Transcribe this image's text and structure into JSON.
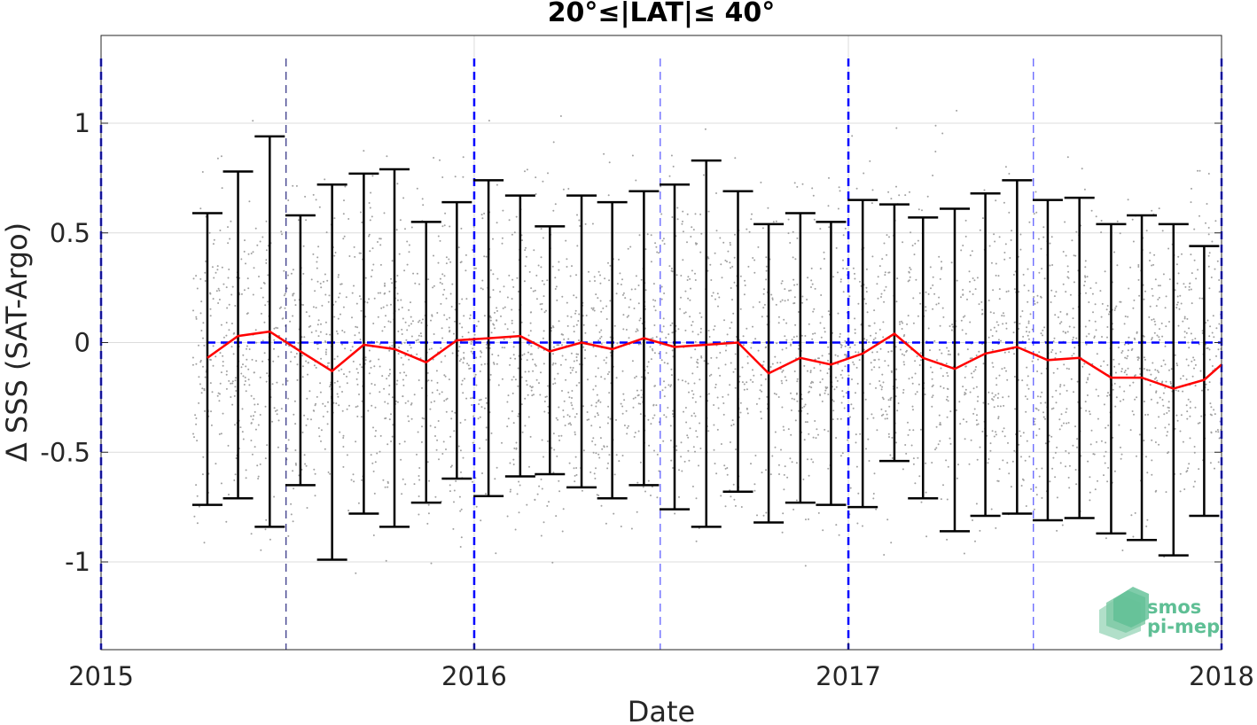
{
  "chart_data": {
    "type": "line",
    "title": "20°≤|LAT|≤ 40°",
    "xlabel": "Date",
    "ylabel": "Δ SSS (SAT-Argo)",
    "xlim": [
      "2015-01-01",
      "2018-01-01"
    ],
    "ylim": [
      -1.4,
      1.4
    ],
    "x_ticks": [
      {
        "date": "2015-01-01",
        "label": "2015"
      },
      {
        "date": "2016-01-01",
        "label": "2016"
      },
      {
        "date": "2017-01-01",
        "label": "2017"
      },
      {
        "date": "2018-01-01",
        "label": "2018"
      }
    ],
    "y_ticks": [
      {
        "value": 1,
        "label": "1"
      },
      {
        "value": 0.5,
        "label": "0.5"
      },
      {
        "value": 0,
        "label": "0"
      },
      {
        "value": -0.5,
        "label": "-0.5"
      },
      {
        "value": -1,
        "label": "-1"
      }
    ],
    "grid": true,
    "reference_line": {
      "y": 0,
      "color": "#0000ff",
      "style": "dashed"
    },
    "year_lines": {
      "dates": [
        "2015-01-01",
        "2016-01-01",
        "2017-01-01",
        "2018-01-01"
      ],
      "color": "#0000ff",
      "style": "dashed"
    },
    "midyear_lines": {
      "dates": [
        "2015-07-01",
        "2016-07-01",
        "2017-07-01"
      ],
      "color": "#0000ff",
      "style": "dashed"
    },
    "series": [
      {
        "type": "line",
        "color": "#ff0000",
        "x": [
          "2015-04-15",
          "2015-05-15",
          "2015-06-15",
          "2015-07-15",
          "2015-08-15",
          "2015-09-15",
          "2015-10-15",
          "2015-11-15",
          "2015-12-15",
          "2016-01-15",
          "2016-02-15",
          "2016-03-15",
          "2016-04-15",
          "2016-05-15",
          "2016-06-15",
          "2016-07-15",
          "2016-08-15",
          "2016-09-15",
          "2016-10-15",
          "2016-11-15",
          "2016-12-15",
          "2017-01-15",
          "2017-02-15",
          "2017-03-15",
          "2017-04-15",
          "2017-05-15",
          "2017-06-15",
          "2017-07-15",
          "2017-08-15",
          "2017-09-15",
          "2017-10-15",
          "2017-11-15",
          "2017-12-15",
          "2018-01-01"
        ],
        "y": [
          -0.07,
          0.03,
          0.05,
          -0.04,
          -0.13,
          -0.01,
          -0.03,
          -0.09,
          0.01,
          0.02,
          0.03,
          -0.04,
          0.0,
          -0.03,
          0.02,
          -0.02,
          -0.01,
          0.0,
          -0.14,
          -0.07,
          -0.1,
          -0.05,
          0.04,
          -0.07,
          -0.12,
          -0.05,
          -0.02,
          -0.08,
          -0.07,
          -0.16,
          -0.16,
          -0.21,
          -0.17,
          -0.1
        ]
      },
      {
        "type": "errorbar",
        "color": "#000000",
        "x": [
          "2015-04-15",
          "2015-05-15",
          "2015-06-15",
          "2015-07-15",
          "2015-08-15",
          "2015-09-15",
          "2015-10-15",
          "2015-11-15",
          "2015-12-15",
          "2016-01-15",
          "2016-02-15",
          "2016-03-15",
          "2016-04-15",
          "2016-05-15",
          "2016-06-15",
          "2016-07-15",
          "2016-08-15",
          "2016-09-15",
          "2016-10-15",
          "2016-11-15",
          "2016-12-15",
          "2017-01-15",
          "2017-02-15",
          "2017-03-15",
          "2017-04-15",
          "2017-05-15",
          "2017-06-15",
          "2017-07-15",
          "2017-08-15",
          "2017-09-15",
          "2017-10-15",
          "2017-11-15",
          "2017-12-15"
        ],
        "upper": [
          0.59,
          0.78,
          0.94,
          0.58,
          0.72,
          0.77,
          0.79,
          0.55,
          0.64,
          0.74,
          0.67,
          0.53,
          0.67,
          0.64,
          0.69,
          0.72,
          0.83,
          0.69,
          0.54,
          0.59,
          0.55,
          0.65,
          0.63,
          0.57,
          0.61,
          0.68,
          0.74,
          0.65,
          0.66,
          0.54,
          0.58,
          0.54,
          0.44
        ],
        "lower": [
          -0.74,
          -0.71,
          -0.84,
          -0.65,
          -0.99,
          -0.78,
          -0.84,
          -0.73,
          -0.62,
          -0.7,
          -0.61,
          -0.6,
          -0.66,
          -0.71,
          -0.65,
          -0.76,
          -0.84,
          -0.68,
          -0.82,
          -0.73,
          -0.74,
          -0.75,
          -0.54,
          -0.71,
          -0.86,
          -0.79,
          -0.78,
          -0.81,
          -0.8,
          -0.87,
          -0.9,
          -0.97,
          -0.79
        ]
      },
      {
        "type": "scatter",
        "color": "#a0a0a0",
        "description_count": 3600
      }
    ],
    "logo_text": [
      "smos",
      "pi-mep"
    ]
  }
}
